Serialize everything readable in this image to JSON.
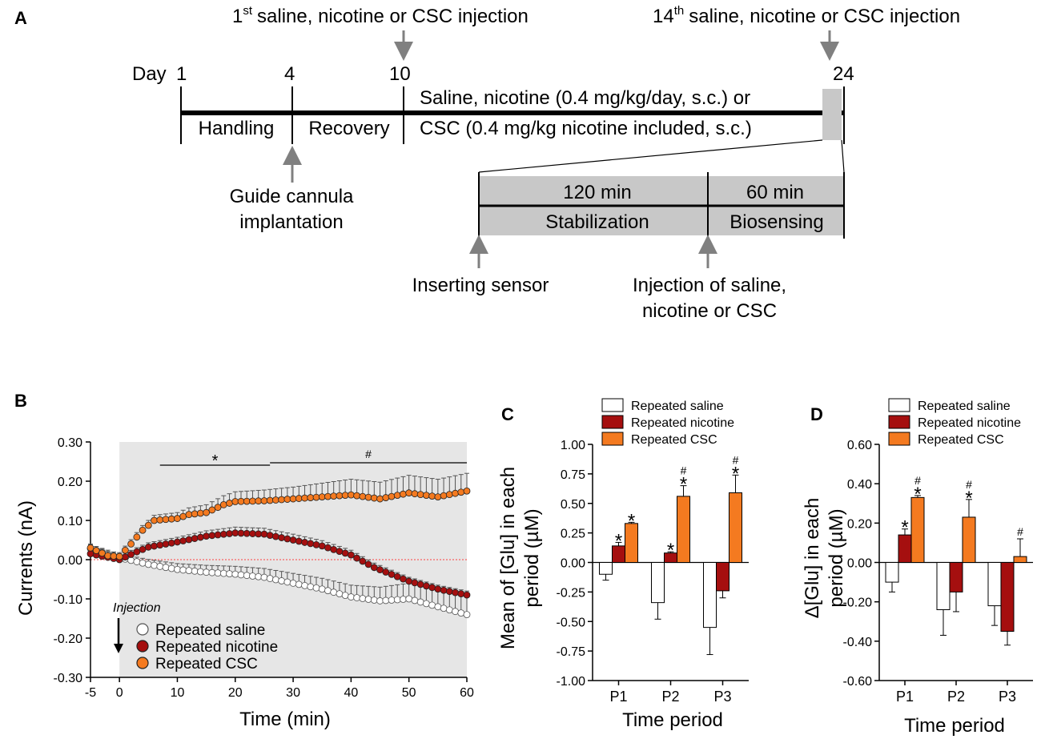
{
  "panels": {
    "a": "A",
    "b": "B",
    "c": "C",
    "d": "D"
  },
  "timeline": {
    "first_injection": "saline, nicotine or CSC injection",
    "first_sup": "st",
    "first_num": "1",
    "last_injection": "saline, nicotine or CSC injection",
    "last_sup": "th",
    "last_num": "14",
    "day_prefix": "Day",
    "days": [
      "1",
      "4",
      "10",
      "24"
    ],
    "handling": "Handling",
    "recovery": "Recovery",
    "treatment_line1": "Saline, nicotine (0.4 mg/kg/day, s.c.) or",
    "treatment_line2": "CSC (0.4 mg/kg nicotine included, s.c.)",
    "cannula_line1": "Guide cannula",
    "cannula_line2": "implantation",
    "stab_time": "120 min",
    "bio_time": "60 min",
    "stabilization": "Stabilization",
    "biosensing": "Biosensing",
    "inserting": "Inserting sensor",
    "inj_line1": "Injection of saline,",
    "inj_line2": "nicotine or CSC"
  },
  "colors": {
    "saline": "#ffffff",
    "nicotine": "#a50f0f",
    "csc": "#f47a20",
    "shade": "#e6e6e6",
    "box": "#c8c8c8"
  },
  "chart_data": [
    {
      "type": "line",
      "panel": "B",
      "xlabel": "Time (min)",
      "ylabel": "Currents (nA)",
      "xlim": [
        -5,
        60
      ],
      "ylim": [
        -0.3,
        0.3
      ],
      "xticks": [
        "-5",
        "0",
        "10",
        "20",
        "30",
        "40",
        "50",
        "60"
      ],
      "yticks": [
        "0.30",
        "0.20",
        "0.10",
        "0.00",
        "-0.10",
        "-0.20",
        "-0.30"
      ],
      "annotation_injection": "Injection",
      "sig_star": "*",
      "sig_hash": "#",
      "sig_star_range": [
        7,
        26
      ],
      "sig_hash_range": [
        26,
        60
      ],
      "legend": [
        "Repeated saline",
        "Repeated nicotine",
        "Repeated CSC"
      ],
      "series": [
        {
          "name": "Repeated saline",
          "key": "saline",
          "points": [
            [
              -5,
              0.028
            ],
            [
              0,
              0.005
            ],
            [
              5,
              -0.012
            ],
            [
              10,
              -0.025
            ],
            [
              15,
              -0.032
            ],
            [
              20,
              -0.037
            ],
            [
              25,
              -0.045
            ],
            [
              30,
              -0.06
            ],
            [
              35,
              -0.075
            ],
            [
              40,
              -0.095
            ],
            [
              45,
              -0.105
            ],
            [
              50,
              -0.1
            ],
            [
              55,
              -0.12
            ],
            [
              60,
              -0.14
            ]
          ],
          "err": [
            [
              -5,
              0.01
            ],
            [
              0,
              0.01
            ],
            [
              10,
              0.015
            ],
            [
              20,
              0.02
            ],
            [
              30,
              0.025
            ],
            [
              40,
              0.03
            ],
            [
              50,
              0.04
            ],
            [
              60,
              0.045
            ]
          ]
        },
        {
          "name": "Repeated nicotine",
          "key": "nicotine",
          "points": [
            [
              -5,
              0.015
            ],
            [
              0,
              0.0
            ],
            [
              3,
              0.02
            ],
            [
              5,
              0.032
            ],
            [
              10,
              0.045
            ],
            [
              15,
              0.06
            ],
            [
              20,
              0.068
            ],
            [
              25,
              0.065
            ],
            [
              30,
              0.05
            ],
            [
              35,
              0.035
            ],
            [
              40,
              0.012
            ],
            [
              44,
              -0.02
            ],
            [
              50,
              -0.055
            ],
            [
              55,
              -0.075
            ],
            [
              60,
              -0.09
            ]
          ],
          "err": [
            [
              -5,
              0.01
            ],
            [
              0,
              0.01
            ],
            [
              10,
              0.012
            ],
            [
              20,
              0.015
            ],
            [
              30,
              0.015
            ],
            [
              40,
              0.012
            ],
            [
              50,
              0.01
            ],
            [
              60,
              0.01
            ]
          ]
        },
        {
          "name": "Repeated CSC",
          "key": "csc",
          "points": [
            [
              -5,
              0.03
            ],
            [
              -2,
              0.01
            ],
            [
              0,
              0.008
            ],
            [
              2,
              0.04
            ],
            [
              4,
              0.075
            ],
            [
              6,
              0.1
            ],
            [
              10,
              0.105
            ],
            [
              12,
              0.115
            ],
            [
              15,
              0.12
            ],
            [
              18,
              0.14
            ],
            [
              20,
              0.148
            ],
            [
              25,
              0.15
            ],
            [
              30,
              0.155
            ],
            [
              35,
              0.16
            ],
            [
              40,
              0.165
            ],
            [
              45,
              0.155
            ],
            [
              50,
              0.17
            ],
            [
              55,
              0.16
            ],
            [
              60,
              0.175
            ]
          ],
          "err": [
            [
              -5,
              0.01
            ],
            [
              0,
              0.01
            ],
            [
              10,
              0.015
            ],
            [
              20,
              0.025
            ],
            [
              30,
              0.03
            ],
            [
              40,
              0.04
            ],
            [
              50,
              0.045
            ],
            [
              60,
              0.045
            ]
          ]
        }
      ]
    },
    {
      "type": "bar",
      "panel": "C",
      "xlabel": "Time period",
      "ylabel": "Mean of [Glu] in each period (µM)",
      "ylabel_line1": "Mean of [Glu] in each",
      "ylabel_line2": "period (µM)",
      "ylim": [
        -1.0,
        1.0
      ],
      "yticks": [
        "1.00",
        "0.75",
        "0.50",
        "0.25",
        "0.00",
        "-0.25",
        "-0.50",
        "-0.75",
        "-1.00"
      ],
      "categories": [
        "P1",
        "P2",
        "P3"
      ],
      "legend": [
        "Repeated saline",
        "Repeated nicotine",
        "Repeated CSC"
      ],
      "series": [
        {
          "name": "Repeated saline",
          "key": "saline",
          "values": [
            -0.1,
            -0.34,
            -0.55
          ],
          "err": [
            0.05,
            0.14,
            0.23
          ],
          "marks": [
            "",
            "",
            ""
          ]
        },
        {
          "name": "Repeated nicotine",
          "key": "nicotine",
          "values": [
            0.14,
            0.08,
            -0.24
          ],
          "err": [
            0.03,
            0.01,
            0.06
          ],
          "marks": [
            "*",
            "*",
            ""
          ]
        },
        {
          "name": "Repeated CSC",
          "key": "csc",
          "values": [
            0.33,
            0.56,
            0.59
          ],
          "err": [
            0.01,
            0.09,
            0.15
          ],
          "marks": [
            "*",
            "*",
            "*"
          ],
          "hash": [
            "",
            "#",
            "#"
          ]
        }
      ]
    },
    {
      "type": "bar",
      "panel": "D",
      "xlabel": "Time period",
      "ylabel": "Δ[Glu] in each period (µM)",
      "ylabel_line1": "Δ[Glu] in each",
      "ylabel_line2": "period (µM)",
      "ylim": [
        -0.6,
        0.6
      ],
      "yticks": [
        "0.60",
        "0.40",
        "0.20",
        "0.00",
        "-0.20",
        "-0.40",
        "-0.60"
      ],
      "categories": [
        "P1",
        "P2",
        "P3"
      ],
      "legend": [
        "Repeated saline",
        "Repeated nicotine",
        "Repeated CSC"
      ],
      "series": [
        {
          "name": "Repeated saline",
          "key": "saline",
          "values": [
            -0.1,
            -0.24,
            -0.22
          ],
          "err": [
            0.05,
            0.13,
            0.1
          ],
          "marks": [
            "",
            "",
            ""
          ]
        },
        {
          "name": "Repeated nicotine",
          "key": "nicotine",
          "values": [
            0.14,
            -0.15,
            -0.35
          ],
          "err": [
            0.03,
            0.1,
            0.07
          ],
          "marks": [
            "*",
            "",
            ""
          ]
        },
        {
          "name": "Repeated CSC",
          "key": "csc",
          "values": [
            0.33,
            0.23,
            0.03
          ],
          "err": [
            0.01,
            0.09,
            0.09
          ],
          "marks": [
            "*",
            "*",
            ""
          ],
          "hash": [
            "#",
            "#",
            "#"
          ]
        }
      ]
    }
  ]
}
